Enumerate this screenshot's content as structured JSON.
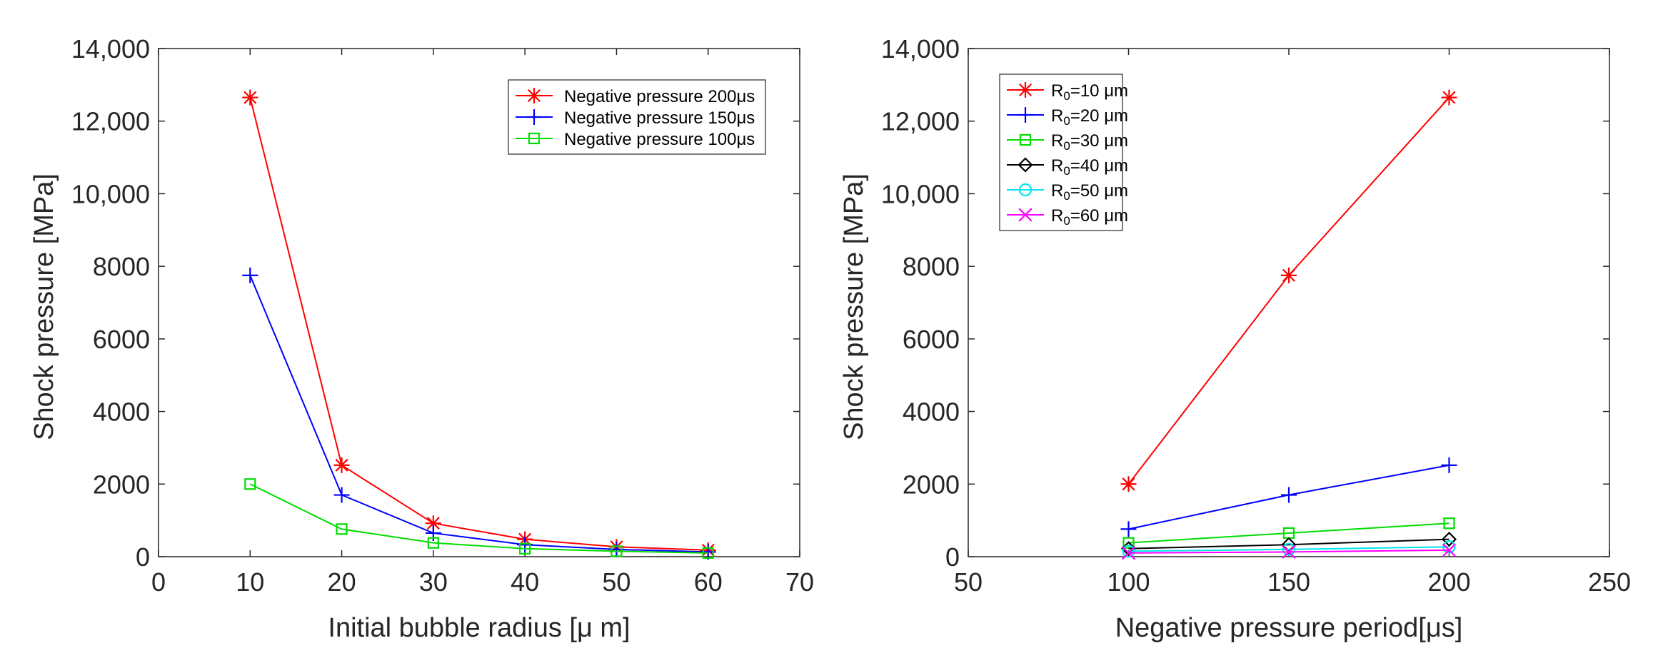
{
  "chart_data": [
    {
      "type": "line",
      "title": "",
      "xlabel": "Initial bubble radius [μ m]",
      "ylabel": "Shock pressure [MPa]",
      "xlim": [
        0,
        70
      ],
      "ylim": [
        0,
        14000
      ],
      "xticks": [
        "0",
        "10",
        "20",
        "30",
        "40",
        "50",
        "60",
        "70"
      ],
      "yticks": [
        "0",
        "2000",
        "4000",
        "6000",
        "8000",
        "10,000",
        "12,000",
        "14,000"
      ],
      "x": [
        10,
        20,
        30,
        40,
        50,
        60
      ],
      "legend_position": "top-right",
      "series": [
        {
          "name": "Negative pressure 200μs",
          "color": "#ff0000",
          "marker": "asterisk",
          "values": [
            12650,
            2520,
            920,
            480,
            270,
            180
          ]
        },
        {
          "name": "Negative pressure 150μs",
          "color": "#0000ff",
          "marker": "plus",
          "values": [
            7750,
            1700,
            650,
            330,
            200,
            130
          ]
        },
        {
          "name": "Negative pressure 100μs",
          "color": "#00dd00",
          "marker": "square",
          "values": [
            2000,
            760,
            380,
            220,
            150,
            100
          ]
        }
      ]
    },
    {
      "type": "line",
      "title": "",
      "xlabel": "Negative pressure period[μs]",
      "ylabel": "Shock pressure [MPa]",
      "xlim": [
        50,
        250
      ],
      "ylim": [
        0,
        14000
      ],
      "xticks": [
        "50",
        "100",
        "150",
        "200",
        "250"
      ],
      "yticks": [
        "0",
        "2000",
        "4000",
        "6000",
        "8000",
        "10,000",
        "12,000",
        "14,000"
      ],
      "x": [
        100,
        150,
        200
      ],
      "legend_position": "top-left",
      "series": [
        {
          "name": "R₀=10 μm",
          "color": "#ff0000",
          "marker": "asterisk",
          "values": [
            2000,
            7750,
            12650
          ]
        },
        {
          "name": "R₀=20 μm",
          "color": "#0000ff",
          "marker": "plus",
          "values": [
            760,
            1700,
            2520
          ]
        },
        {
          "name": "R₀=30 μm",
          "color": "#00dd00",
          "marker": "square",
          "values": [
            380,
            650,
            920
          ]
        },
        {
          "name": "R₀=40 μm",
          "color": "#000000",
          "marker": "diamond",
          "values": [
            220,
            330,
            480
          ]
        },
        {
          "name": "R₀=50 μm",
          "color": "#00e5ee",
          "marker": "circle",
          "values": [
            150,
            200,
            270
          ]
        },
        {
          "name": "R₀=60 μm",
          "color": "#ff00ff",
          "marker": "x",
          "values": [
            100,
            130,
            180
          ]
        }
      ]
    }
  ]
}
